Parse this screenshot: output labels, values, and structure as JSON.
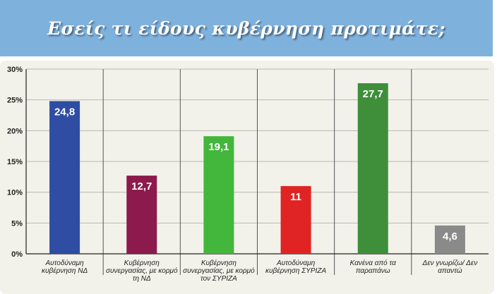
{
  "header": {
    "title": "Εσείς τι είδους κυβέρνηση προτιμάτε;"
  },
  "chart_data": {
    "type": "bar",
    "categories": [
      "Αυτοδύναμη κυβέρνηση ΝΔ",
      "Κυβέρνηση συνεργασίας, με κορμό τη ΝΔ",
      "Κυβέρνηση συνεργασίας, με κορμό τον ΣΥΡΙΖΑ",
      "Αυτοδύναμη κυβέρνηση ΣΥΡΙΖΑ",
      "Κανένα από τα παραπάνω",
      "Δεν γνωρίζω/ Δεν απαντώ"
    ],
    "category_lines": [
      [
        "Αυτοδύναμη",
        "κυβέρνηση ΝΔ"
      ],
      [
        "Κυβέρνηση",
        "συνεργασίας, με κορμό",
        "τη ΝΔ"
      ],
      [
        "Κυβέρνηση",
        "συνεργασίας, με κορμό",
        "τον ΣΥΡΙΖΑ"
      ],
      [
        "Αυτοδύναμη",
        "κυβέρνηση ΣΥΡΙΖΑ"
      ],
      [
        "Κανένα από τα",
        "παραπάνω"
      ],
      [
        "Δεν γνωρίζω/ Δεν",
        "απαντώ"
      ]
    ],
    "values": [
      24.8,
      12.7,
      19.1,
      11,
      27.7,
      4.6
    ],
    "value_labels": [
      "24,8",
      "12,7",
      "19,1",
      "11",
      "27,7",
      "4,6"
    ],
    "colors": [
      "#2e4da3",
      "#8c1a4c",
      "#43b63c",
      "#e02424",
      "#3e8e3a",
      "#8a8a8a"
    ],
    "y_ticks": [
      "0%",
      "5%",
      "10%",
      "15%",
      "20%",
      "25%",
      "30%"
    ],
    "ylim": [
      0,
      30
    ],
    "grid": true,
    "legend": "none",
    "xlabel": "",
    "ylabel": ""
  }
}
